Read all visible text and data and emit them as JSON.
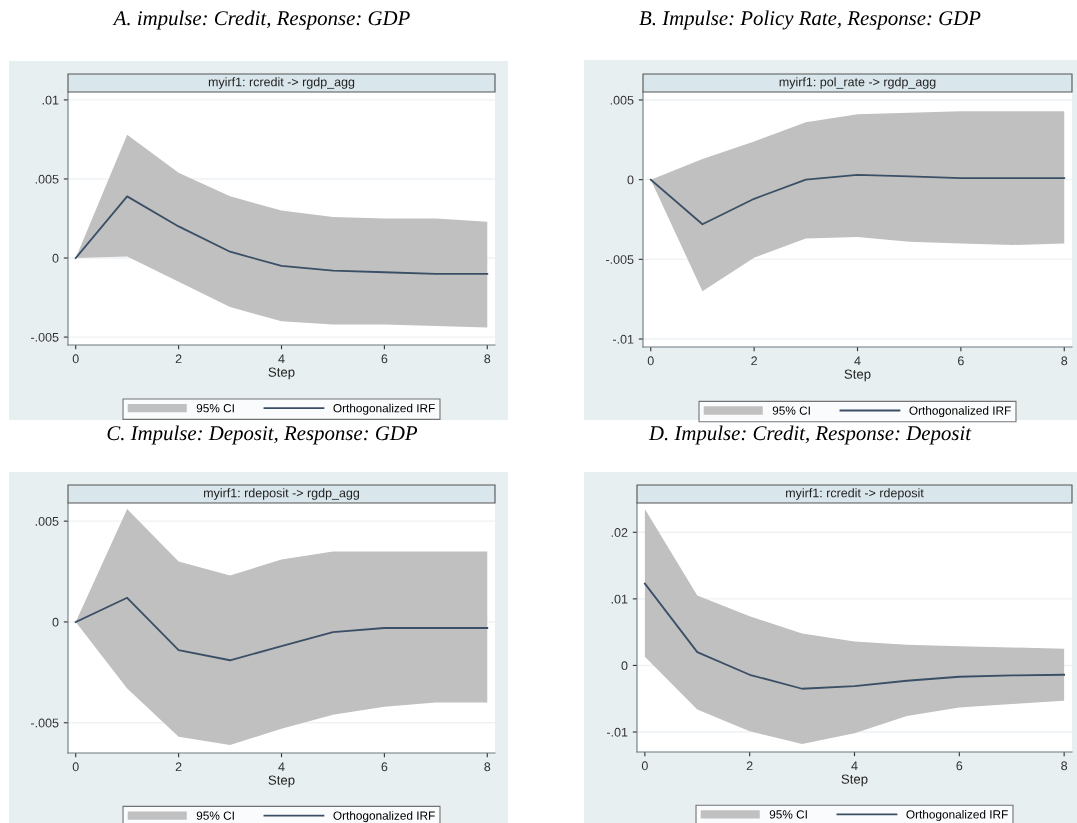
{
  "chart_data": [
    {
      "type": "line",
      "title": "A. impulse: Credit, Response: GDP",
      "subtitle": "myirf1: rcredit -> rgdp_agg",
      "xlabel": "Step",
      "annotations": [
        "95% CI"
      ],
      "x": [
        0,
        1,
        2,
        3,
        4,
        5,
        6,
        7,
        8
      ],
      "series": [
        {
          "name": "Orthogonalized IRF",
          "color": "#3a4f66",
          "values": [
            0,
            0.0039,
            0.002,
            0.0004,
            -0.0005,
            -0.0008,
            -0.0009,
            -0.001,
            -0.001
          ],
          "upper": [
            0,
            0.0078,
            0.0054,
            0.0039,
            0.003,
            0.0026,
            0.0025,
            0.0025,
            0.0023
          ],
          "lower": [
            0,
            0.0001,
            -0.0015,
            -0.0031,
            -0.004,
            -0.0042,
            -0.0042,
            -0.0043,
            -0.0044
          ]
        }
      ],
      "xlim": [
        -0.15,
        8.15
      ],
      "xticks": [
        0,
        2,
        4,
        6,
        8
      ],
      "ylim": [
        -0.0055,
        0.0105
      ],
      "yticks": [
        {
          "value": -0.005,
          "label": "-.005"
        },
        0,
        {
          "value": 0.005,
          "label": ".005"
        },
        {
          "value": 0.01,
          "label": ".01"
        }
      ],
      "grid": "y",
      "legend": "bottom",
      "line_style": "solid",
      "marker": "none"
    },
    {
      "type": "line",
      "title": "B. Impulse: Policy Rate, Response: GDP",
      "subtitle": "myirf1: pol_rate -> rgdp_agg",
      "xlabel": "Step",
      "annotations": [
        "95% CI"
      ],
      "x": [
        0,
        1,
        2,
        3,
        4,
        5,
        6,
        7,
        8
      ],
      "series": [
        {
          "name": "Orthogonalized IRF",
          "color": "#3a4f66",
          "values": [
            0,
            -0.0028,
            -0.0012,
            0,
            0.0003,
            0.0002,
            0.0001,
            0.0001,
            0.0001
          ],
          "upper": [
            0,
            0.0013,
            0.0024,
            0.0036,
            0.0041,
            0.0042,
            0.0043,
            0.0043,
            0.0043
          ],
          "lower": [
            0,
            -0.007,
            -0.0049,
            -0.0037,
            -0.0036,
            -0.0039,
            -0.004,
            -0.0041,
            -0.004
          ]
        }
      ],
      "xlim": [
        -0.15,
        8.15
      ],
      "xticks": [
        0,
        2,
        4,
        6,
        8
      ],
      "ylim": [
        -0.0105,
        0.0055
      ],
      "yticks": [
        {
          "value": -0.01,
          "label": "-.01"
        },
        {
          "value": -0.005,
          "label": "-.005"
        },
        0,
        {
          "value": 0.005,
          "label": ".005"
        }
      ],
      "grid": "y",
      "legend": "bottom",
      "line_style": "solid",
      "marker": "none"
    },
    {
      "type": "line",
      "title": "C. Impulse: Deposit, Response: GDP",
      "subtitle": "myirf1: rdeposit -> rgdp_agg",
      "xlabel": "Step",
      "annotations": [
        "95% CI"
      ],
      "x": [
        0,
        1,
        2,
        3,
        4,
        5,
        6,
        7,
        8
      ],
      "series": [
        {
          "name": "Orthogonalized IRF",
          "color": "#3a4f66",
          "values": [
            0,
            0.0012,
            -0.0014,
            -0.0019,
            -0.0012,
            -0.0005,
            -0.0003,
            -0.0003,
            -0.0003
          ],
          "upper": [
            0,
            0.0056,
            0.003,
            0.0023,
            0.0031,
            0.0035,
            0.0035,
            0.0035,
            0.0035
          ],
          "lower": [
            0,
            -0.0033,
            -0.0057,
            -0.0061,
            -0.0053,
            -0.0046,
            -0.0042,
            -0.004,
            -0.004
          ]
        }
      ],
      "xlim": [
        -0.15,
        8.15
      ],
      "xticks": [
        0,
        2,
        4,
        6,
        8
      ],
      "ylim": [
        -0.0065,
        0.0059
      ],
      "yticks": [
        {
          "value": -0.005,
          "label": "-.005"
        },
        0,
        {
          "value": 0.005,
          "label": ".005"
        }
      ],
      "grid": "y",
      "legend": "bottom",
      "line_style": "solid",
      "marker": "none"
    },
    {
      "type": "line",
      "title": "D. Impulse: Credit, Response: Deposit",
      "subtitle": "myirf1: rcredit -> rdeposit",
      "xlabel": "Step",
      "annotations": [
        "95% CI"
      ],
      "x": [
        0,
        1,
        2,
        3,
        4,
        5,
        6,
        7,
        8
      ],
      "series": [
        {
          "name": "Orthogonalized IRF",
          "color": "#3a4f66",
          "values": [
            0.0123,
            0.002,
            -0.0014,
            -0.0035,
            -0.0031,
            -0.0023,
            -0.0017,
            -0.0015,
            -0.0014
          ],
          "upper": [
            0.0235,
            0.0105,
            0.0074,
            0.0048,
            0.0036,
            0.0031,
            0.0029,
            0.0027,
            0.0025
          ],
          "lower": [
            0.0013,
            -0.0066,
            -0.0099,
            -0.0118,
            -0.0102,
            -0.0076,
            -0.0063,
            -0.0058,
            -0.0053
          ]
        }
      ],
      "xlim": [
        -0.15,
        8.15
      ],
      "xticks": [
        0,
        2,
        4,
        6,
        8
      ],
      "ylim": [
        -0.013,
        0.0244
      ],
      "yticks": [
        {
          "value": -0.01,
          "label": "-.01"
        },
        0,
        {
          "value": 0.01,
          "label": ".01"
        },
        {
          "value": 0.02,
          "label": ".02"
        }
      ],
      "grid": "y",
      "legend": "bottom",
      "line_style": "solid",
      "marker": "none"
    }
  ]
}
